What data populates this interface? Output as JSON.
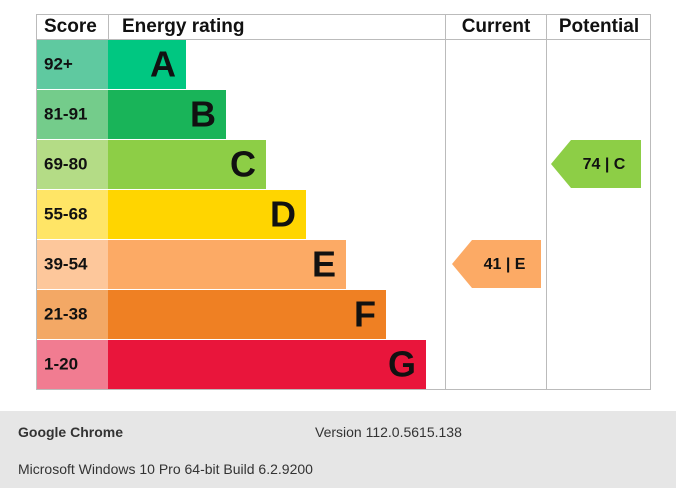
{
  "header": {
    "score": "Score",
    "rating": "Energy rating",
    "current": "Current",
    "potential": "Potential"
  },
  "bands": [
    {
      "score": "92+",
      "letter": "A",
      "color": "#00c781",
      "score_color": "#5fc9a0"
    },
    {
      "score": "81-91",
      "letter": "B",
      "color": "#19b459",
      "score_color": "#74cc8b"
    },
    {
      "score": "69-80",
      "letter": "C",
      "color": "#8dce46",
      "score_color": "#b4dc86"
    },
    {
      "score": "55-68",
      "letter": "D",
      "color": "#ffd500",
      "score_color": "#ffe566"
    },
    {
      "score": "39-54",
      "letter": "E",
      "color": "#fcaa65",
      "score_color": "#fdc79b"
    },
    {
      "score": "21-38",
      "letter": "F",
      "color": "#ef8023",
      "score_color": "#f3a865"
    },
    {
      "score": "1-20",
      "letter": "G",
      "color": "#e9153b",
      "score_color": "#f17c91"
    }
  ],
  "current": "41 | E",
  "potential": "74 | C",
  "footer": {
    "browser": "Google Chrome",
    "version": "Version 112.0.5615.138",
    "os": "Microsoft Windows 10 Pro 64-bit Build 6.2.9200"
  }
}
